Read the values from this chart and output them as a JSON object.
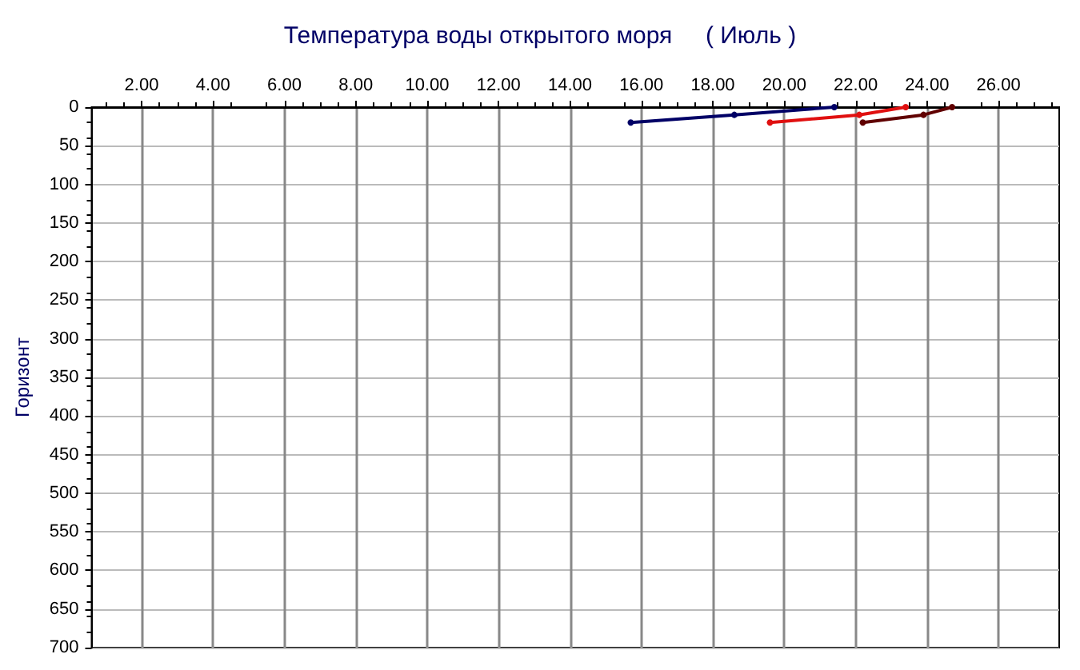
{
  "chart_data": {
    "type": "line",
    "title": "Температура воды открытого моря     ( Июль )",
    "ylabel": "Горизонт",
    "xlim": [
      0.6,
      27.7
    ],
    "xticks": [
      {
        "value": 2,
        "label": "2.00"
      },
      {
        "value": 4,
        "label": "4.00"
      },
      {
        "value": 6,
        "label": "6.00"
      },
      {
        "value": 8,
        "label": "8.00"
      },
      {
        "value": 10,
        "label": "10.00"
      },
      {
        "value": 12,
        "label": "12.00"
      },
      {
        "value": 14,
        "label": "14.00"
      },
      {
        "value": 16,
        "label": "16.00"
      },
      {
        "value": 18,
        "label": "18.00"
      },
      {
        "value": 20,
        "label": "20.00"
      },
      {
        "value": 22,
        "label": "22.00"
      },
      {
        "value": 24,
        "label": "24.00"
      },
      {
        "value": 26,
        "label": "26.00"
      }
    ],
    "ylim": [
      700,
      0
    ],
    "yticks": [
      0,
      50,
      100,
      150,
      200,
      250,
      300,
      350,
      400,
      450,
      500,
      550,
      600,
      650,
      700
    ],
    "grid": true,
    "marker": "circle",
    "line_style": "solid",
    "series": [
      {
        "color": "#000066",
        "x": [
          21.4,
          18.6,
          15.7
        ],
        "values": [
          0,
          10,
          20
        ]
      },
      {
        "color": "#e01010",
        "x": [
          23.4,
          22.1,
          19.6
        ],
        "values": [
          0,
          10,
          20
        ]
      },
      {
        "color": "#600000",
        "x": [
          24.7,
          23.9,
          22.2
        ],
        "values": [
          0,
          10,
          20
        ]
      }
    ]
  }
}
